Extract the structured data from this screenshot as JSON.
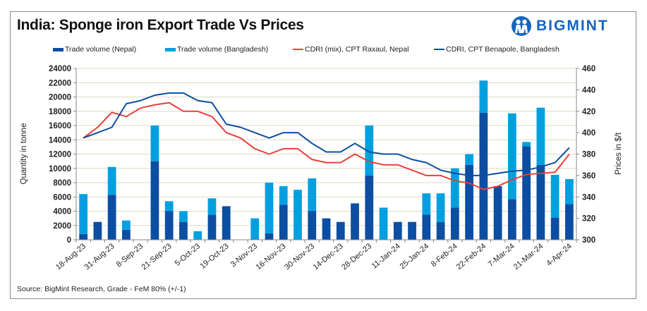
{
  "title": "India: Sponge iron Export Trade Vs Prices",
  "logo": {
    "icon": "bigmint-people-icon",
    "text": "BIGMINT",
    "color": "#1565c0"
  },
  "source": "Source: BigMint Research, Grade - FeM 80% (+/-1)",
  "chart_data": {
    "type": "bar",
    "subtype": "stacked-bar-with-lines-dual-axis",
    "title": "India: Sponge iron Export Trade Vs Prices",
    "ylabel": "Quantity in tonne",
    "y2label": "Prices in $/t",
    "ylim": [
      0,
      24000
    ],
    "y_ticks": [
      "0",
      "2000",
      "4000",
      "6000",
      "8000",
      "10000",
      "12000",
      "14000",
      "16000",
      "18000",
      "20000",
      "22000",
      "24000"
    ],
    "y2lim": [
      300,
      460
    ],
    "y2_ticks": [
      "300",
      "320",
      "340",
      "360",
      "380",
      "400",
      "420",
      "440",
      "460"
    ],
    "grid": true,
    "legend_position": "top",
    "x_tick_labels": [
      "18-Aug-23",
      "31-Aug-23",
      "8-Sep-23",
      "21-Sep-23",
      "5-Oct-23",
      "19-Oct-23",
      "3-Nov-23",
      "16-Nov-23",
      "30-Nov-23",
      "14-Dec-23",
      "28-Dec-23",
      "11-Jan-24",
      "25-Jan-24",
      "8-Feb-24",
      "22-Feb-24",
      "7-Mar-24",
      "21-Mar-24",
      "4-Apr-24"
    ],
    "x_tick_label_every": 2,
    "category_count": 35,
    "series": [
      {
        "name": "Trade volume (Nepal)",
        "kind": "bar",
        "axis": "left",
        "color": "#0b4ea2",
        "values": [
          800,
          2500,
          6300,
          1400,
          0,
          11000,
          4000,
          2500,
          0,
          3500,
          4700,
          0,
          0,
          900,
          4900,
          0,
          4000,
          3000,
          2500,
          5100,
          9000,
          0,
          2500,
          2500,
          3500,
          2500,
          4500,
          10500,
          17800,
          7500,
          5700,
          13100,
          10500,
          3100,
          5000
        ]
      },
      {
        "name": "Trade volume (Bangladesh)",
        "kind": "bar",
        "axis": "left",
        "color": "#00a0e0",
        "values": [
          5600,
          0,
          3900,
          1300,
          0,
          5000,
          1400,
          1500,
          1200,
          2300,
          0,
          0,
          3000,
          7100,
          2600,
          7000,
          4600,
          0,
          0,
          0,
          7000,
          4500,
          0,
          0,
          3000,
          4000,
          5500,
          1500,
          4500,
          0,
          12000,
          600,
          8000,
          6000,
          3500
        ]
      },
      {
        "name": "CDRI (mix), CPT Raxaul, Nepal",
        "kind": "line",
        "axis": "right",
        "color": "#e8403a",
        "values": [
          395,
          405,
          419,
          415,
          423,
          426,
          428,
          420,
          420,
          415,
          400,
          395,
          385,
          380,
          385,
          385,
          375,
          372,
          372,
          380,
          373,
          370,
          370,
          365,
          360,
          360,
          355,
          353,
          347,
          350,
          356,
          361,
          362,
          363,
          380
        ]
      },
      {
        "name": "CDRI, CPT Benapole, Bangladesh",
        "kind": "line",
        "axis": "right",
        "color": "#0b4ea2",
        "values": [
          395,
          400,
          405,
          427,
          430,
          435,
          437,
          437,
          430,
          428,
          408,
          405,
          400,
          395,
          400,
          400,
          390,
          382,
          382,
          390,
          382,
          380,
          380,
          375,
          372,
          365,
          362,
          360,
          360,
          362,
          364,
          365,
          368,
          372,
          386
        ]
      }
    ]
  }
}
